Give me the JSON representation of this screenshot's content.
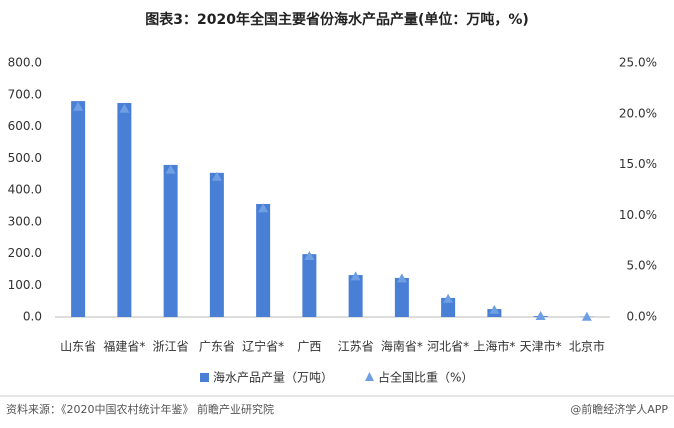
{
  "chart_data": {
    "type": "bar_scatter",
    "title": "图表3：2020年全国主要省份海水产品产量(单位：万吨，%)",
    "categories": [
      "山东省",
      "福建省*",
      "浙江省",
      "广东省",
      "辽宁省*",
      "广西",
      "江苏省",
      "海南省*",
      "河北省*",
      "上海市*",
      "天津市*",
      "北京市"
    ],
    "series": [
      {
        "name": "海水产品产量（万吨）",
        "color": "#4a7fd6",
        "type": "bar",
        "values": [
          680,
          674,
          479,
          454,
          356,
          198,
          132,
          123,
          60,
          25,
          3,
          1
        ]
      },
      {
        "name": "占全国比重（%）",
        "color": "#6f9fe3",
        "type": "triangle",
        "axis": "y2",
        "values": [
          20.7,
          20.5,
          14.5,
          13.8,
          10.7,
          6.0,
          4.0,
          3.8,
          1.8,
          0.7,
          0.1,
          0.03
        ]
      }
    ],
    "ylim": [
      0,
      800
    ],
    "yticks": [
      {
        "value": 0,
        "label": "0.0"
      },
      {
        "value": 100,
        "label": "100.0"
      },
      {
        "value": 200,
        "label": "200.0"
      },
      {
        "value": 300,
        "label": "300.0"
      },
      {
        "value": 400,
        "label": "400.0"
      },
      {
        "value": 500,
        "label": "500.0"
      },
      {
        "value": 600,
        "label": "600.0"
      },
      {
        "value": 700,
        "label": "700.0"
      },
      {
        "value": 800,
        "label": "800.0"
      }
    ],
    "y2lim": [
      0,
      25
    ],
    "y2ticks": [
      {
        "value": 0,
        "label": "0.0%"
      },
      {
        "value": 5,
        "label": "5.0%"
      },
      {
        "value": 10,
        "label": "10.0%"
      },
      {
        "value": 15,
        "label": "15.0%"
      },
      {
        "value": 20,
        "label": "20.0%"
      },
      {
        "value": 25,
        "label": "25.0%"
      }
    ],
    "legend": "bottom",
    "source": "资料来源：《2020中国农村统计年鉴》 前瞻产业研究院",
    "footer": "@前瞻经济学人APP"
  }
}
